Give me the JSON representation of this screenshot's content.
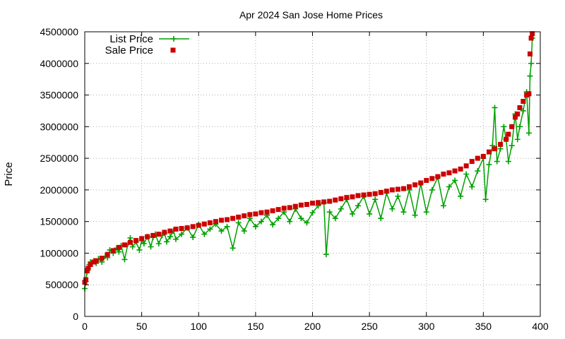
{
  "chart_data": {
    "type": "scatter",
    "title": "Apr 2024 San Jose Home Prices",
    "xlabel": "",
    "ylabel": "Price",
    "xlim": [
      0,
      400
    ],
    "ylim": [
      0,
      4500000
    ],
    "x_ticks": [
      "0",
      "50",
      "100",
      "150",
      "200",
      "250",
      "300",
      "350",
      "400"
    ],
    "y_ticks": [
      "0",
      "500000",
      "1000000",
      "1500000",
      "2000000",
      "2500000",
      "3000000",
      "3500000",
      "4000000",
      "4500000"
    ],
    "grid": true,
    "legend_position": "top-left",
    "series": [
      {
        "name": "List Price",
        "style": "line+plus",
        "color": "#00a000",
        "x": [
          0,
          1,
          2,
          3,
          4,
          5,
          8,
          10,
          12,
          15,
          18,
          20,
          22,
          25,
          28,
          30,
          32,
          35,
          38,
          40,
          42,
          45,
          48,
          50,
          52,
          55,
          58,
          60,
          62,
          65,
          68,
          70,
          72,
          75,
          78,
          80,
          85,
          90,
          95,
          100,
          105,
          110,
          115,
          120,
          125,
          130,
          135,
          140,
          145,
          150,
          155,
          160,
          165,
          170,
          175,
          180,
          185,
          190,
          195,
          200,
          205,
          210,
          212,
          215,
          220,
          225,
          230,
          235,
          240,
          245,
          250,
          255,
          260,
          265,
          270,
          275,
          280,
          285,
          290,
          295,
          300,
          305,
          310,
          315,
          320,
          325,
          330,
          335,
          340,
          345,
          350,
          352,
          355,
          358,
          360,
          362,
          365,
          368,
          370,
          372,
          375,
          378,
          380,
          382,
          385,
          388,
          390,
          391,
          392,
          393
        ],
        "y": [
          440000,
          550000,
          700000,
          760000,
          820000,
          860000,
          880000,
          840000,
          910000,
          860000,
          950000,
          930000,
          1050000,
          1000000,
          1080000,
          1020000,
          1120000,
          900000,
          1150000,
          1240000,
          1100000,
          1180000,
          1050000,
          1200000,
          1150000,
          1260000,
          1100000,
          1250000,
          1300000,
          1150000,
          1280000,
          1320000,
          1180000,
          1260000,
          1350000,
          1220000,
          1300000,
          1400000,
          1250000,
          1450000,
          1300000,
          1380000,
          1460000,
          1350000,
          1420000,
          1080000,
          1480000,
          1350000,
          1550000,
          1420000,
          1500000,
          1600000,
          1450000,
          1550000,
          1650000,
          1500000,
          1700000,
          1550000,
          1480000,
          1640000,
          1750000,
          1800000,
          980000,
          1650000,
          1550000,
          1700000,
          1850000,
          1620000,
          1750000,
          1900000,
          1620000,
          1850000,
          1550000,
          1950000,
          1700000,
          1900000,
          1650000,
          2000000,
          1600000,
          2100000,
          1650000,
          2000000,
          2200000,
          1750000,
          2050000,
          2150000,
          1900000,
          2250000,
          2050000,
          2300000,
          2500000,
          1850000,
          2400000,
          2700000,
          3300000,
          2450000,
          2650000,
          3000000,
          2800000,
          2450000,
          2700000,
          3200000,
          2800000,
          3000000,
          3250000,
          3550000,
          2900000,
          3800000,
          4000000,
          4400000
        ]
      },
      {
        "name": "Sale Price",
        "style": "square",
        "color": "#cc0000",
        "x": [
          0,
          1,
          2,
          3,
          5,
          8,
          10,
          15,
          20,
          25,
          30,
          35,
          40,
          45,
          50,
          55,
          60,
          65,
          70,
          75,
          80,
          85,
          90,
          95,
          100,
          105,
          110,
          115,
          120,
          125,
          130,
          135,
          140,
          145,
          150,
          155,
          160,
          165,
          170,
          175,
          180,
          185,
          190,
          195,
          200,
          205,
          210,
          215,
          220,
          225,
          230,
          235,
          240,
          245,
          250,
          255,
          260,
          265,
          270,
          275,
          280,
          285,
          290,
          295,
          300,
          305,
          310,
          315,
          320,
          325,
          330,
          335,
          340,
          345,
          350,
          355,
          360,
          365,
          370,
          372,
          375,
          378,
          380,
          382,
          385,
          388,
          390,
          391,
          392,
          393
        ],
        "y": [
          540000,
          580000,
          720000,
          760000,
          820000,
          860000,
          880000,
          920000,
          980000,
          1040000,
          1090000,
          1130000,
          1170000,
          1200000,
          1230000,
          1260000,
          1280000,
          1300000,
          1330000,
          1350000,
          1380000,
          1390000,
          1400000,
          1420000,
          1440000,
          1460000,
          1480000,
          1500000,
          1520000,
          1530000,
          1550000,
          1570000,
          1590000,
          1610000,
          1620000,
          1640000,
          1650000,
          1670000,
          1690000,
          1710000,
          1720000,
          1740000,
          1760000,
          1770000,
          1790000,
          1800000,
          1810000,
          1820000,
          1840000,
          1860000,
          1880000,
          1890000,
          1910000,
          1920000,
          1930000,
          1940000,
          1960000,
          1980000,
          2000000,
          2010000,
          2020000,
          2050000,
          2080000,
          2110000,
          2150000,
          2180000,
          2210000,
          2250000,
          2270000,
          2300000,
          2330000,
          2380000,
          2450000,
          2500000,
          2530000,
          2600000,
          2650000,
          2720000,
          2800000,
          2880000,
          3000000,
          3150000,
          3200000,
          3300000,
          3400000,
          3500000,
          3520000,
          4150000,
          4400000,
          4470000
        ]
      }
    ]
  }
}
